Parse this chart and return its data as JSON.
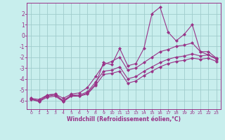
{
  "background_color": "#c8eeed",
  "grid_color": "#a0cccc",
  "line_color": "#993388",
  "marker_color": "#993388",
  "xlabel": "Windchill (Refroidissement éolien,°C)",
  "xlim": [
    -0.5,
    23.5
  ],
  "ylim": [
    -6.8,
    3.0
  ],
  "xticks": [
    0,
    1,
    2,
    3,
    4,
    5,
    6,
    7,
    8,
    9,
    10,
    11,
    12,
    13,
    14,
    15,
    16,
    17,
    18,
    19,
    20,
    21,
    22,
    23
  ],
  "yticks": [
    -6,
    -5,
    -4,
    -3,
    -2,
    -1,
    0,
    1,
    2
  ],
  "series": [
    {
      "x": [
        0,
        1,
        2,
        3,
        4,
        5,
        6,
        7,
        8,
        9,
        10,
        11,
        12,
        13,
        14,
        15,
        16,
        17,
        18,
        19,
        20,
        21,
        22,
        23
      ],
      "y": [
        -5.8,
        -6.1,
        -5.5,
        -5.4,
        -6.1,
        -5.5,
        -5.6,
        -5.3,
        -4.5,
        -2.5,
        -2.7,
        -1.2,
        -2.8,
        -2.6,
        -1.2,
        2.0,
        2.6,
        0.3,
        -0.5,
        0.1,
        1.0,
        -1.5,
        -1.8,
        -2.1
      ]
    },
    {
      "x": [
        0,
        1,
        2,
        3,
        4,
        5,
        6,
        7,
        8,
        9,
        10,
        11,
        12,
        13,
        14,
        15,
        16,
        17,
        18,
        19,
        20,
        21,
        22,
        23
      ],
      "y": [
        -5.8,
        -5.9,
        -5.5,
        -5.4,
        -5.8,
        -5.4,
        -5.3,
        -4.8,
        -3.8,
        -2.7,
        -2.4,
        -2.0,
        -3.2,
        -3.0,
        -2.5,
        -2.0,
        -1.5,
        -1.3,
        -1.0,
        -0.9,
        -0.7,
        -1.5,
        -1.5,
        -2.1
      ]
    },
    {
      "x": [
        0,
        1,
        2,
        3,
        4,
        5,
        6,
        7,
        8,
        9,
        10,
        11,
        12,
        13,
        14,
        15,
        16,
        17,
        18,
        19,
        20,
        21,
        22,
        23
      ],
      "y": [
        -5.9,
        -6.0,
        -5.6,
        -5.5,
        -6.0,
        -5.5,
        -5.5,
        -5.2,
        -4.3,
        -3.3,
        -3.2,
        -2.9,
        -4.0,
        -3.8,
        -3.3,
        -2.9,
        -2.5,
        -2.2,
        -2.0,
        -1.9,
        -1.7,
        -1.9,
        -1.8,
        -2.2
      ]
    },
    {
      "x": [
        0,
        1,
        2,
        3,
        4,
        5,
        6,
        7,
        8,
        9,
        10,
        11,
        12,
        13,
        14,
        15,
        16,
        17,
        18,
        19,
        20,
        21,
        22,
        23
      ],
      "y": [
        -5.9,
        -6.1,
        -5.7,
        -5.6,
        -6.1,
        -5.6,
        -5.6,
        -5.4,
        -4.6,
        -3.6,
        -3.5,
        -3.3,
        -4.4,
        -4.2,
        -3.7,
        -3.3,
        -2.9,
        -2.6,
        -2.4,
        -2.3,
        -2.1,
        -2.2,
        -2.1,
        -2.4
      ]
    }
  ]
}
